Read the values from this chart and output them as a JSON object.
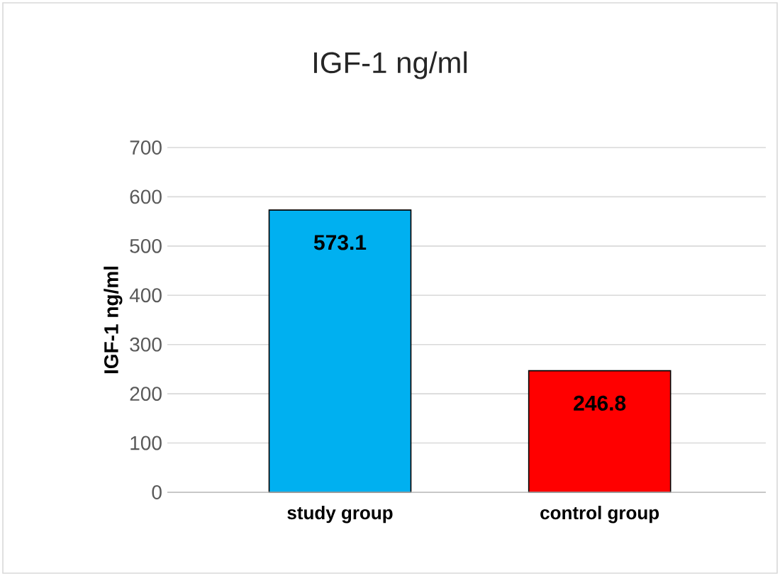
{
  "chart_data": {
    "type": "bar",
    "title": "IGF-1 ng/ml",
    "ylabel": "IGF-1 ng/ml",
    "categories": [
      "study group",
      "control group"
    ],
    "values": [
      573.1,
      246.8
    ],
    "colors": [
      "#00b0f0",
      "#ff0000"
    ],
    "ylim": [
      0,
      700
    ],
    "yticks": [
      0,
      100,
      200,
      300,
      400,
      500,
      600,
      700
    ],
    "grid": "y",
    "data_labels": true
  }
}
